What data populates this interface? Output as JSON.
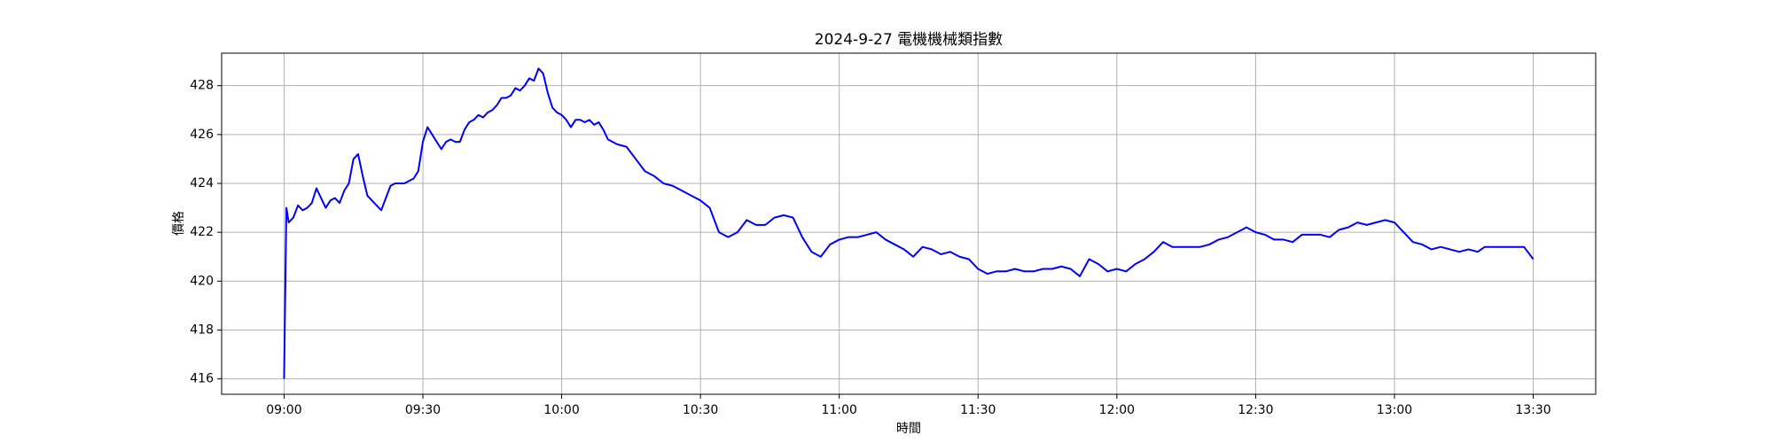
{
  "chart_data": {
    "type": "line",
    "title": "2024-9-27 電機機械類指數",
    "x_label": "時間",
    "y_label": "價格",
    "color": "#0000ff",
    "grid": true,
    "x": [
      0,
      0.5,
      1,
      2,
      3,
      4,
      5,
      6,
      7,
      8,
      9,
      10,
      11,
      12,
      13,
      14,
      15,
      16,
      17,
      18,
      19,
      20,
      21,
      22,
      23,
      24,
      25,
      26,
      27,
      28,
      29,
      30,
      31,
      32,
      33,
      34,
      35,
      36,
      37,
      38,
      39,
      40,
      41,
      42,
      43,
      44,
      45,
      46,
      47,
      48,
      49,
      50,
      51,
      52,
      53,
      54,
      55,
      56,
      57,
      58,
      59,
      60,
      61,
      62,
      63,
      64,
      65,
      66,
      67,
      68,
      69,
      70,
      72,
      74,
      76,
      78,
      80,
      82,
      84,
      86,
      88,
      90,
      92,
      94,
      96,
      98,
      100,
      102,
      104,
      106,
      108,
      110,
      112,
      114,
      116,
      118,
      120,
      122,
      124,
      126,
      128,
      130,
      132,
      134,
      136,
      138,
      140,
      142,
      144,
      146,
      148,
      150,
      152,
      154,
      156,
      158,
      160,
      162,
      164,
      166,
      168,
      170,
      172,
      174,
      176,
      178,
      180,
      182,
      184,
      186,
      188,
      190,
      192,
      194,
      196,
      198,
      200,
      202,
      204,
      206,
      208,
      210,
      212,
      214,
      216,
      218,
      220,
      222,
      224,
      226,
      228,
      230,
      232,
      234,
      236,
      238,
      240,
      242,
      244,
      246,
      248,
      250,
      252,
      254,
      256,
      258,
      259.5,
      261,
      268,
      270
    ],
    "values": [
      416,
      423,
      422.4,
      422.6,
      423.1,
      422.9,
      423,
      423.2,
      423.8,
      423.4,
      423,
      423.3,
      423.4,
      423.2,
      423.7,
      424,
      425,
      425.2,
      424.3,
      423.5,
      423.3,
      423.1,
      422.9,
      423.4,
      423.9,
      424,
      424,
      424,
      424.1,
      424.2,
      424.5,
      425.7,
      426.3,
      426,
      425.7,
      425.4,
      425.7,
      425.8,
      425.7,
      425.7,
      426.2,
      426.5,
      426.6,
      426.8,
      426.7,
      426.9,
      427,
      427.2,
      427.5,
      427.5,
      427.6,
      427.9,
      427.8,
      428,
      428.3,
      428.2,
      428.7,
      428.5,
      427.7,
      427.1,
      426.9,
      426.8,
      426.6,
      426.3,
      426.6,
      426.6,
      426.5,
      426.6,
      426.4,
      426.5,
      426.2,
      425.8,
      425.6,
      425.5,
      425,
      424.5,
      424.3,
      424,
      423.9,
      423.7,
      423.5,
      423.3,
      423,
      422,
      421.8,
      422,
      422.5,
      422.3,
      422.3,
      422.6,
      422.7,
      422.6,
      421.8,
      421.2,
      421,
      421.5,
      421.7,
      421.8,
      421.8,
      421.9,
      422,
      421.7,
      421.5,
      421.3,
      421,
      421.4,
      421.3,
      421.1,
      421.2,
      421,
      420.9,
      420.5,
      420.3,
      420.4,
      420.4,
      420.5,
      420.4,
      420.4,
      420.5,
      420.5,
      420.6,
      420.5,
      420.2,
      420.9,
      420.7,
      420.4,
      420.5,
      420.4,
      420.7,
      420.9,
      421.2,
      421.6,
      421.4,
      421.4,
      421.4,
      421.4,
      421.5,
      421.7,
      421.8,
      422,
      422.2,
      422,
      421.9,
      421.7,
      421.7,
      421.6,
      421.9,
      421.9,
      421.9,
      421.8,
      422.1,
      422.2,
      422.4,
      422.3,
      422.4,
      422.5,
      422.4,
      422,
      421.6,
      421.5,
      421.3,
      421.4,
      421.3,
      421.2,
      421.3,
      421.2,
      421.4,
      421.4,
      421.4,
      420.9
    ],
    "xlim": [
      -13.5,
      283.5
    ],
    "xticks": [
      {
        "value": 0,
        "label": "09:00"
      },
      {
        "value": 30,
        "label": "09:30"
      },
      {
        "value": 60,
        "label": "10:00"
      },
      {
        "value": 90,
        "label": "10:30"
      },
      {
        "value": 120,
        "label": "11:00"
      },
      {
        "value": 150,
        "label": "11:30"
      },
      {
        "value": 180,
        "label": "12:00"
      },
      {
        "value": 210,
        "label": "12:30"
      },
      {
        "value": 240,
        "label": "13:00"
      },
      {
        "value": 270,
        "label": "13:30"
      }
    ],
    "ylim": [
      415.37,
      429.33
    ],
    "yticks": [
      416,
      418,
      420,
      422,
      424,
      426,
      428
    ]
  }
}
